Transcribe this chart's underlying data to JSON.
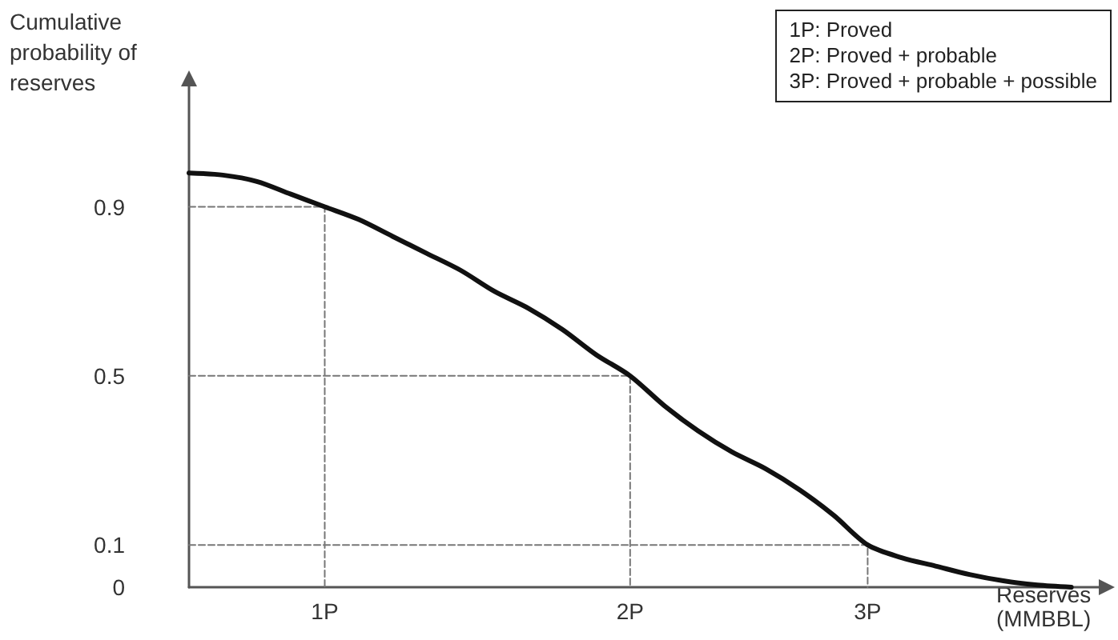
{
  "chart_data": {
    "type": "line",
    "xlabel": "Reserves (MMBBL)",
    "ylabel": "Cumulative probability of reserves",
    "annotations": [
      "1P: Proved",
      "2P: Proved + probable",
      "3P: Proved + probable + possible"
    ],
    "categories": [
      null,
      null,
      null,
      null,
      "1P",
      null,
      null,
      null,
      null,
      null,
      null,
      null,
      null,
      "2P",
      null,
      null,
      null,
      null,
      null,
      null,
      "3P",
      null,
      null,
      null,
      null,
      null,
      null,
      null
    ],
    "ylim": [
      0,
      1.2
    ],
    "yticks": [
      0,
      0.1,
      0.5,
      0.9
    ],
    "grid": false,
    "marker": "none",
    "series": [
      {
        "color": "#111111",
        "line_style": "solid",
        "values": [
          0.98,
          0.975,
          0.96,
          0.93,
          0.9,
          0.87,
          0.83,
          0.79,
          0.75,
          0.7,
          0.66,
          0.61,
          0.55,
          0.5,
          0.43,
          0.37,
          0.32,
          0.28,
          0.23,
          0.17,
          0.1,
          0.07,
          0.05,
          0.03,
          0.015,
          0.005,
          0,
          null
        ]
      },
      {
        "type": "step",
        "color": "#777777",
        "line_style": "dashed",
        "values": [
          0.9,
          0.9,
          0.9,
          0.9,
          0,
          null,
          null,
          null,
          null,
          null,
          null,
          null,
          null,
          null,
          null,
          null,
          null,
          null,
          null,
          null,
          null,
          null,
          null,
          null,
          null,
          null,
          null,
          null
        ]
      },
      {
        "type": "step",
        "color": "#777777",
        "line_style": "dashed",
        "values": [
          0.5,
          0.5,
          0.5,
          0.5,
          0.5,
          0.5,
          0.5,
          0.5,
          0.5,
          0.5,
          0.5,
          0.5,
          0.5,
          0,
          null,
          null,
          null,
          null,
          null,
          null,
          null,
          null,
          null,
          null,
          null,
          null,
          null,
          null
        ]
      },
      {
        "type": "step",
        "color": "#777777",
        "line_style": "dashed",
        "values": [
          0.1,
          0.1,
          0.1,
          0.1,
          0.1,
          0.1,
          0.1,
          0.1,
          0.1,
          0.1,
          0.1,
          0.1,
          0.1,
          0.1,
          0.1,
          0.1,
          0.1,
          0.1,
          0.1,
          0.1,
          0,
          null,
          null,
          null,
          null,
          null,
          null,
          null
        ]
      }
    ]
  }
}
